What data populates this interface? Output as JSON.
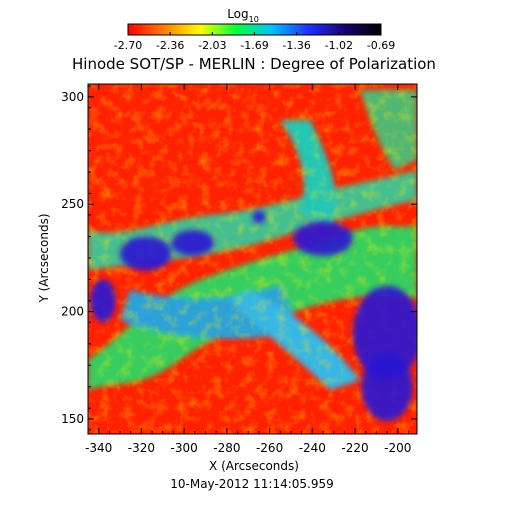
{
  "figure": {
    "title": "Hinode SOT/SP - MERLIN : Degree of Polarization",
    "timestamp": "10-May-2012 11:14:05.959"
  },
  "colorbar": {
    "title_main": "Log",
    "title_sub": "10",
    "tick_labels": [
      "-2.70",
      "-2.36",
      "-2.03",
      "-1.69",
      "-1.36",
      "-1.02",
      "-0.69"
    ],
    "range": [
      -2.7,
      -0.69
    ],
    "colormap": [
      "#ff0000",
      "#ff8000",
      "#ffff00",
      "#00ff40",
      "#00c0ff",
      "#2030ff",
      "#1a006e",
      "#000000"
    ]
  },
  "axes": {
    "xlabel": "X (Arcseconds)",
    "ylabel": "Y (Arcseconds)",
    "x_ticks": [
      "-340",
      "-320",
      "-300",
      "-280",
      "-260",
      "-240",
      "-220",
      "-200"
    ],
    "y_ticks": [
      "150",
      "200",
      "250",
      "300"
    ],
    "xlim": [
      -345,
      -191
    ],
    "ylim": [
      143,
      306
    ]
  },
  "map_features": {
    "description_colors": {
      "quiet_sun": "#ff1a00",
      "network": "#00e0ff",
      "strong_field": "#2a1ad0"
    },
    "strong_polarization_regions": [
      {
        "name": "upper-left plage",
        "x": -318,
        "y": 227,
        "rx": 12,
        "ry": 8
      },
      {
        "name": "upper-middle plage",
        "x": -296,
        "y": 232,
        "rx": 10,
        "ry": 6
      },
      {
        "name": "upper-right plage",
        "x": -235,
        "y": 234,
        "rx": 14,
        "ry": 8
      },
      {
        "name": "left edge plage",
        "x": -338,
        "y": 205,
        "rx": 6,
        "ry": 10
      },
      {
        "name": "lower-right plage",
        "x": -205,
        "y": 190,
        "rx": 16,
        "ry": 22
      },
      {
        "name": "lower-right edge",
        "x": -205,
        "y": 165,
        "rx": 12,
        "ry": 16
      },
      {
        "name": "small knot",
        "x": -265,
        "y": 244,
        "rx": 3,
        "ry": 3
      }
    ]
  }
}
